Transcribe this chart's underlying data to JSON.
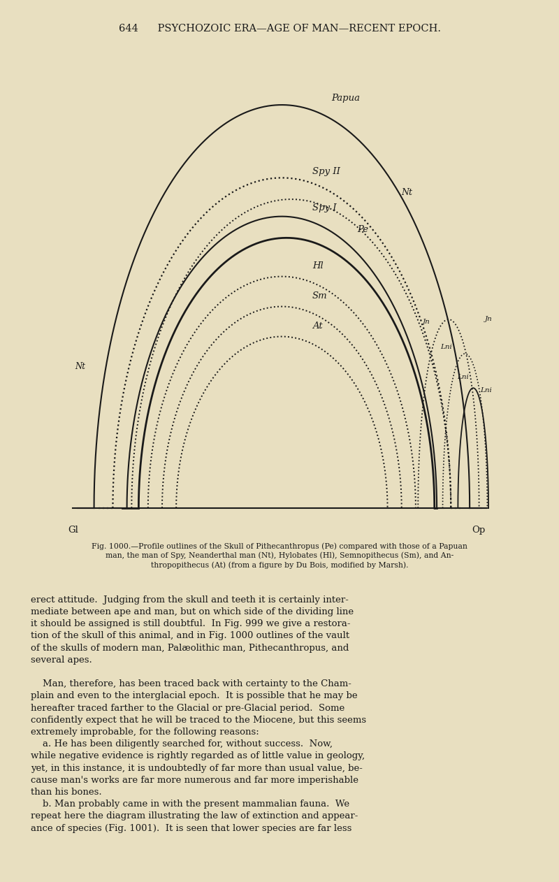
{
  "background_color": "#e8dfc0",
  "title_text": "644      PSYCHOZOIC ERA—AGE OF MAN—RECENT EPOCH.",
  "fig_caption": "Fig. 1000.—Profile outlines of the Skull of Pithecanthropus (Pe) compared with those of a Papuan\nman, the man of Spy, Neanderthal man (Nt), Hylobates (Hl), Semnopithecus (Sm), and An-\nthropopithecus (At) (from a figure by Du Bois, modified by Marsh).",
  "line_color": "#1a1a1a",
  "body_text_1": "erect attitude.  Judging from the skull and teeth it is certainly inter-\nmediate between ape and man, but on which side of the dividing line\nit should be assigned is still doubtful.  In Fig. 999 we give a restora-\ntion of the skull of this animal, and in Fig. 1000 outlines of the vault\nof the skulls of modern man, Palæolithic man, Pithecanthropus, and\nseveral apes.",
  "body_text_2": "    Man, therefore, has been traced back with certainty to the Cham-\nplain and even to the interglacial epoch.  It is possible that he may be\nhereafter traced farther to the Glacial or pre-Glacial period.  Some\nconfidently expect that he will be traced to the Miocene, but this seems\nextremely improbable, for the following reasons:",
  "body_text_3": "    a. He has been diligently searched for, without success.  Now,\nwhile negative evidence is rightly regarded as of little value in geology,\nyet, in this instance, it is undoubtedly of far more than usual value, be-\ncause man's works are far more numerous and far more imperishable\nthan his bones.",
  "body_text_4": "    b. Man probably came in with the present mammalian fauna.  We\nrepeat here the diagram illustrating the law of extinction and appear-\nance of species (Fig. 1001).  It is seen that lower species are far less"
}
